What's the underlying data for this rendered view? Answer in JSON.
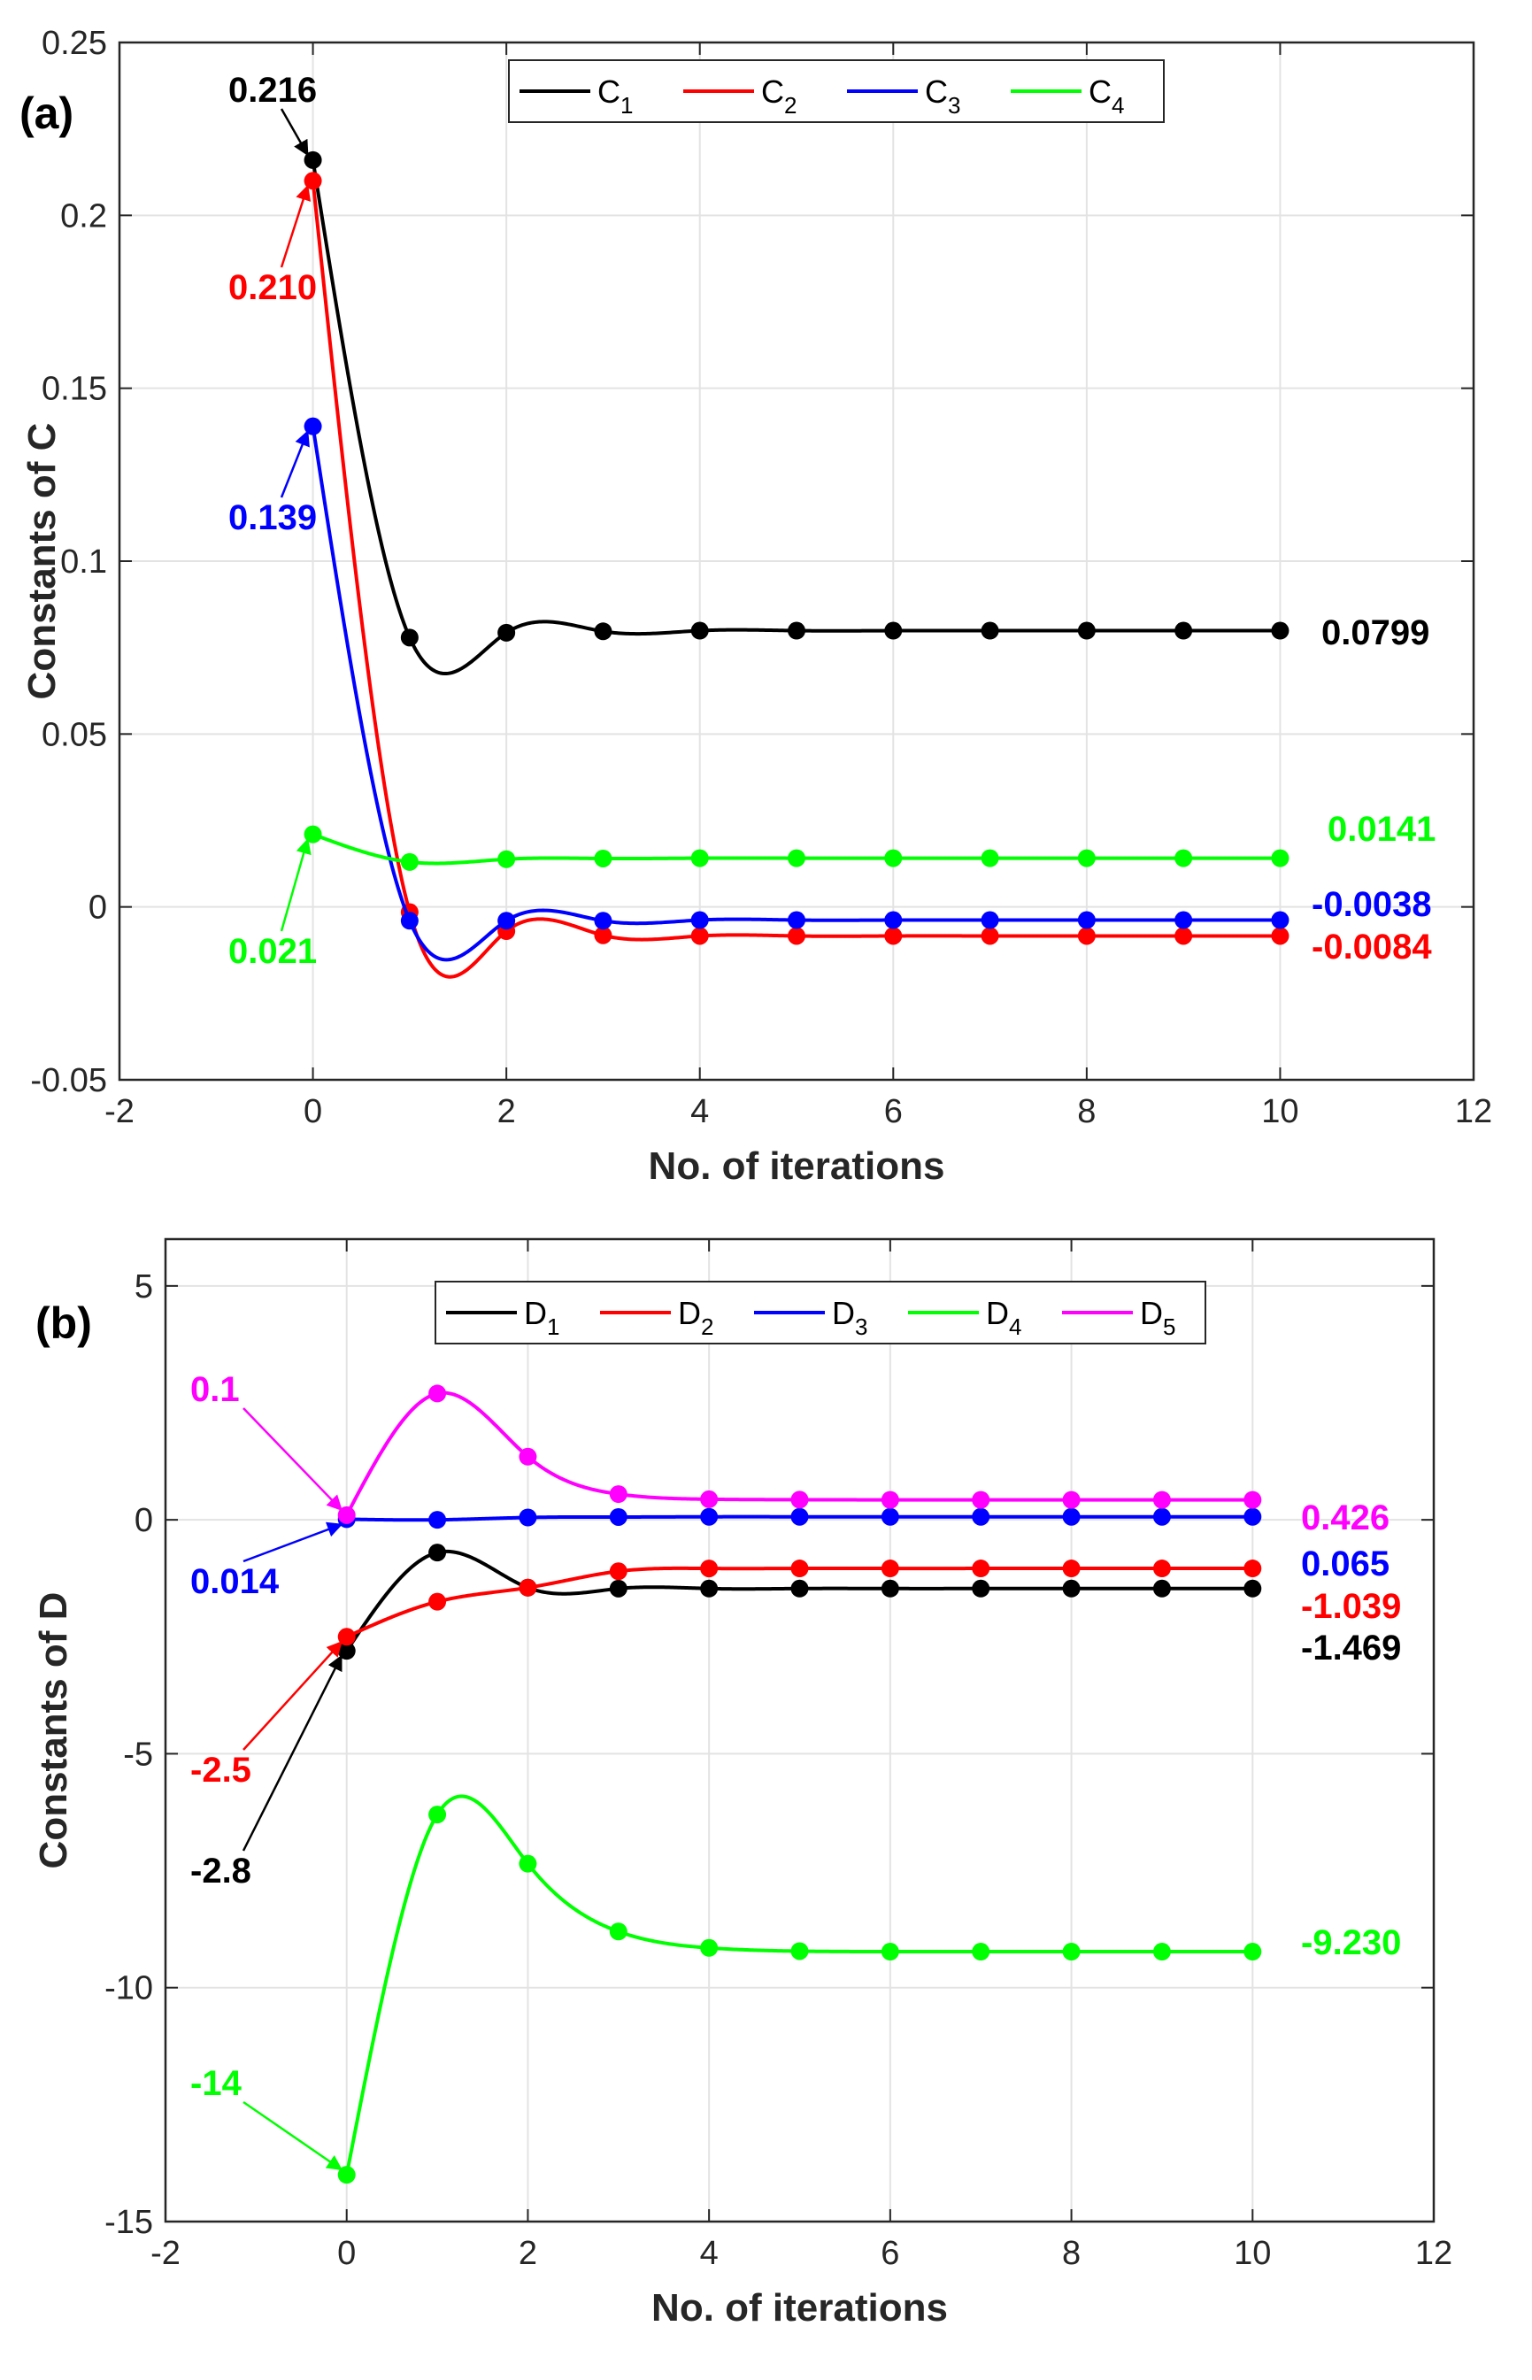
{
  "chart_data": [
    {
      "type": "line",
      "panel_label": "(a)",
      "xlabel": "No. of iterations",
      "ylabel": "Constants of C",
      "xlim": [
        -2,
        12
      ],
      "ylim": [
        -0.05,
        0.25
      ],
      "xticks": [
        "-2",
        "0",
        "2",
        "4",
        "6",
        "8",
        "10",
        "12"
      ],
      "yticks": [
        "-0.05",
        "0",
        "0.05",
        "0.1",
        "0.15",
        "0.2",
        "0.25"
      ],
      "grid": true,
      "legend": "top-center",
      "x": [
        0,
        1,
        2,
        3,
        4,
        5,
        6,
        7,
        8,
        9,
        10
      ],
      "series": [
        {
          "name": "C",
          "sub": "1",
          "color": "#000000",
          "values": [
            0.216,
            0.0779,
            0.0793,
            0.0797,
            0.0799,
            0.0799,
            0.0799,
            0.0799,
            0.0799,
            0.0799,
            0.0799
          ]
        },
        {
          "name": "C",
          "sub": "2",
          "color": "#ff0000",
          "values": [
            0.21,
            -0.0015,
            -0.007,
            -0.0082,
            -0.0084,
            -0.0084,
            -0.0084,
            -0.0084,
            -0.0084,
            -0.0084,
            -0.0084
          ]
        },
        {
          "name": "C",
          "sub": "3",
          "color": "#0000ff",
          "values": [
            0.139,
            -0.004,
            -0.004,
            -0.004,
            -0.0038,
            -0.0038,
            -0.0038,
            -0.0038,
            -0.0038,
            -0.0038,
            -0.0038
          ]
        },
        {
          "name": "C",
          "sub": "4",
          "color": "#00ff00",
          "values": [
            0.021,
            0.013,
            0.0138,
            0.014,
            0.0141,
            0.0141,
            0.0141,
            0.0141,
            0.0141,
            0.0141,
            0.0141
          ]
        }
      ],
      "annotations": [
        {
          "text": "0.216",
          "color": "#000000",
          "x": 0,
          "y": 0.216,
          "arrow": true
        },
        {
          "text": "0.210",
          "color": "#ff0000",
          "x": 0,
          "y": 0.21,
          "arrow": true
        },
        {
          "text": "0.139",
          "color": "#0000ff",
          "x": 0,
          "y": 0.139,
          "arrow": true
        },
        {
          "text": "0.021",
          "color": "#00ff00",
          "x": 0,
          "y": 0.021,
          "arrow": true
        },
        {
          "text": "0.0799",
          "color": "#000000",
          "x": 10,
          "y": 0.0799,
          "arrow": false
        },
        {
          "text": "0.0141",
          "color": "#00ff00",
          "x": 10,
          "y": 0.0141,
          "arrow": false
        },
        {
          "text": "-0.0038",
          "color": "#0000ff",
          "x": 10,
          "y": -0.0038,
          "arrow": false
        },
        {
          "text": "-0.0084",
          "color": "#ff0000",
          "x": 10,
          "y": -0.0084,
          "arrow": false
        }
      ]
    },
    {
      "type": "line",
      "panel_label": "(b)",
      "xlabel": "No. of iterations",
      "ylabel": "Constants of D",
      "xlim": [
        -2,
        12
      ],
      "ylim": [
        -15,
        6
      ],
      "xticks": [
        "-2",
        "0",
        "2",
        "4",
        "6",
        "8",
        "10",
        "12"
      ],
      "yticks": [
        "-15",
        "-10",
        "-5",
        "0",
        "5"
      ],
      "grid": true,
      "legend": "top-center",
      "x": [
        0,
        1,
        2,
        3,
        4,
        5,
        6,
        7,
        8,
        9,
        10
      ],
      "series": [
        {
          "name": "D",
          "sub": "1",
          "color": "#000000",
          "values": [
            -2.8,
            -0.7,
            -1.45,
            -1.47,
            -1.469,
            -1.469,
            -1.469,
            -1.469,
            -1.469,
            -1.469,
            -1.469
          ]
        },
        {
          "name": "D",
          "sub": "2",
          "color": "#ff0000",
          "values": [
            -2.5,
            -1.75,
            -1.45,
            -1.1,
            -1.04,
            -1.039,
            -1.039,
            -1.039,
            -1.039,
            -1.039,
            -1.039
          ]
        },
        {
          "name": "D",
          "sub": "3",
          "color": "#0000ff",
          "values": [
            0.014,
            0.0,
            0.05,
            0.06,
            0.065,
            0.065,
            0.065,
            0.065,
            0.065,
            0.065,
            0.065
          ]
        },
        {
          "name": "D",
          "sub": "4",
          "color": "#00ff00",
          "values": [
            -14,
            -6.3,
            -7.35,
            -8.8,
            -9.15,
            -9.22,
            -9.23,
            -9.23,
            -9.23,
            -9.23,
            -9.23
          ]
        },
        {
          "name": "D",
          "sub": "5",
          "color": "#ff00ff",
          "values": [
            0.1,
            2.7,
            1.35,
            0.55,
            0.44,
            0.43,
            0.426,
            0.426,
            0.426,
            0.426,
            0.426
          ]
        }
      ],
      "annotations": [
        {
          "text": "0.1",
          "color": "#ff00ff",
          "x": 0,
          "y": 0.1,
          "arrow": true
        },
        {
          "text": "0.014",
          "color": "#0000ff",
          "x": 0,
          "y": 0.014,
          "arrow": true
        },
        {
          "text": "-2.5",
          "color": "#ff0000",
          "x": 0,
          "y": -2.5,
          "arrow": true
        },
        {
          "text": "-2.8",
          "color": "#000000",
          "x": 0,
          "y": -2.8,
          "arrow": true
        },
        {
          "text": "-14",
          "color": "#00ff00",
          "x": 0,
          "y": -14,
          "arrow": true
        },
        {
          "text": "0.426",
          "color": "#ff00ff",
          "x": 10,
          "y": 0.426,
          "arrow": false
        },
        {
          "text": "0.065",
          "color": "#0000ff",
          "x": 10,
          "y": 0.065,
          "arrow": false
        },
        {
          "text": "-1.039",
          "color": "#ff0000",
          "x": 10,
          "y": -1.039,
          "arrow": false
        },
        {
          "text": "-1.469",
          "color": "#000000",
          "x": 10,
          "y": -1.469,
          "arrow": false
        },
        {
          "text": "-9.230",
          "color": "#00ff00",
          "x": 10,
          "y": -9.23,
          "arrow": false
        }
      ]
    }
  ]
}
